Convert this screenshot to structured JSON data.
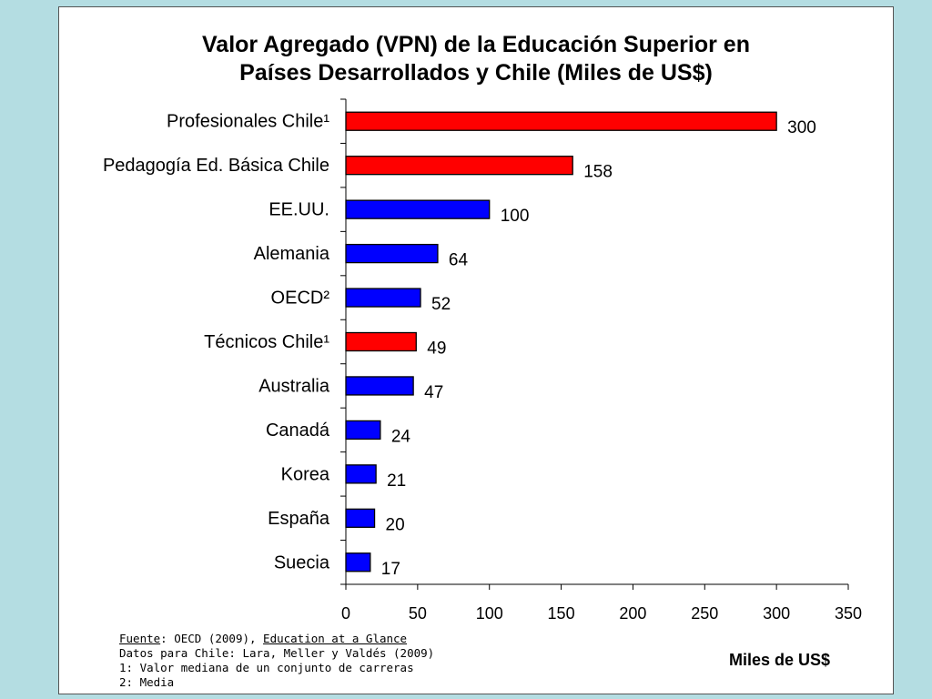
{
  "colors": {
    "background": "#b4dde2",
    "chile": "#ff0000",
    "other": "#0000ff",
    "bar_border": "#000000"
  },
  "chart_data": {
    "type": "bar",
    "orientation": "horizontal",
    "title": "Valor Agregado (VPN) de la Educación Superior en Países Desarrollados y Chile  (Miles de US$)",
    "title_lines": [
      "Valor Agregado (VPN) de la Educación Superior en",
      "Países Desarrollados y Chile  (Miles de US$)"
    ],
    "xlabel": "Miles de US$",
    "ylabel": "",
    "xlim": [
      0,
      350
    ],
    "xticks": [
      0,
      50,
      100,
      150,
      200,
      250,
      300,
      350
    ],
    "grid": false,
    "legend": "none",
    "data_labels": true,
    "categories": [
      "Profesionales Chile¹",
      "Pedagogía Ed. Básica Chile",
      "EE.UU.",
      "Alemania",
      "OECD²",
      "Técnicos Chile¹",
      "Australia",
      "Canadá",
      "Korea",
      "España",
      "Suecia"
    ],
    "values": [
      300,
      158,
      100,
      64,
      52,
      49,
      47,
      24,
      21,
      20,
      17
    ],
    "bar_colors": [
      "#ff0000",
      "#ff0000",
      "#0000ff",
      "#0000ff",
      "#0000ff",
      "#ff0000",
      "#0000ff",
      "#0000ff",
      "#0000ff",
      "#0000ff",
      "#0000ff"
    ]
  },
  "notes": {
    "source_label": "Fuente",
    "source_text": ": OECD (2009), ",
    "source_title": "Education at a Glance",
    "chile_data": "Datos para Chile: Lara, Meller y Valdés (2009)",
    "note1": "1: Valor mediana de un conjunto de carreras",
    "note2": "2: Media"
  }
}
